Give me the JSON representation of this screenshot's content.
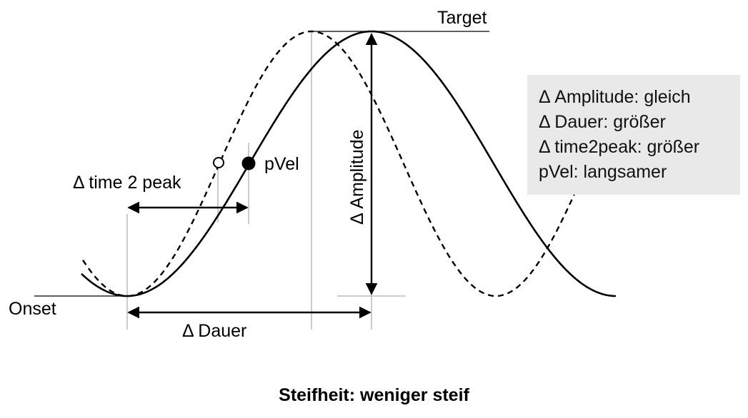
{
  "labels": {
    "target": "Target",
    "onset": "Onset",
    "pvel": "pVel",
    "time2peak": "Δ time 2 peak",
    "dauer": "Δ Dauer",
    "amplitude": "Δ Amplitude"
  },
  "legend": [
    "Δ Amplitude: gleich",
    "Δ Dauer: größer",
    "Δ time2peak: größer",
    "pVel: langsamer"
  ],
  "caption": "Steifheit: weniger steif",
  "colors": {
    "curve": "#000000",
    "guide": "#bbbbbb",
    "legend_bg": "#e9e9e9"
  }
}
